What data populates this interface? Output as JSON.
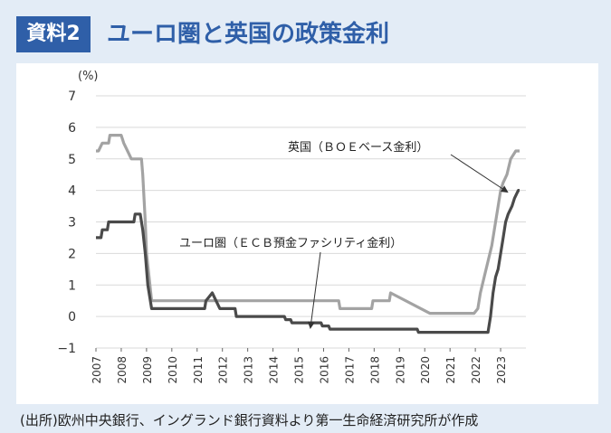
{
  "header": {
    "badge": "資料2",
    "title": "ユーロ圏と英国の政策金利"
  },
  "source": "(出所)欧州中央銀行、イングランド銀行資料より第一生命経済研究所が作成",
  "chart_data": {
    "type": "line",
    "title": "ユーロ圏と英国の政策金利",
    "xlabel": "",
    "ylabel": "(%)",
    "ylim": [
      -1,
      7
    ],
    "xlim": [
      2007.0,
      2024.0
    ],
    "yticks": [
      "−1",
      "0",
      "1",
      "2",
      "3",
      "4",
      "5",
      "6",
      "7"
    ],
    "xticks": [
      "2007",
      "2008",
      "2009",
      "2010",
      "2011",
      "2012",
      "2013",
      "2014",
      "2015",
      "2016",
      "2017",
      "2018",
      "2019",
      "2020",
      "2021",
      "2022",
      "2023"
    ],
    "grid": true,
    "series": [
      {
        "name": "英国（ＢＯＥベース金利）",
        "color": "#a3a3a3",
        "x": [
          2007.0,
          2007.1,
          2007.25,
          2007.5,
          2007.55,
          2008.0,
          2008.1,
          2008.25,
          2008.4,
          2008.8,
          2008.85,
          2008.95,
          2009.0,
          2009.2,
          2016.6,
          2016.65,
          2017.9,
          2017.95,
          2018.6,
          2018.65,
          2020.2,
          2020.25,
          2021.95,
          2022.1,
          2022.2,
          2022.35,
          2022.5,
          2022.65,
          2022.8,
          2022.9,
          2023.0,
          2023.1,
          2023.25,
          2023.4,
          2023.6,
          2023.75
        ],
        "values": [
          5.25,
          5.25,
          5.5,
          5.5,
          5.75,
          5.75,
          5.5,
          5.25,
          5.0,
          5.0,
          4.5,
          3.0,
          2.0,
          0.5,
          0.5,
          0.25,
          0.25,
          0.5,
          0.5,
          0.75,
          0.1,
          0.1,
          0.1,
          0.25,
          0.75,
          1.25,
          1.75,
          2.25,
          3.0,
          3.5,
          4.0,
          4.25,
          4.5,
          5.0,
          5.25,
          5.25
        ]
      },
      {
        "name": "ユーロ圏（ＥＣＢ預金ファシリティ金利）",
        "color": "#4a4a4a",
        "x": [
          2007.0,
          2007.2,
          2007.25,
          2007.45,
          2007.5,
          2008.5,
          2008.55,
          2008.75,
          2008.85,
          2008.95,
          2009.05,
          2009.2,
          2011.3,
          2011.35,
          2011.6,
          2011.9,
          2012.5,
          2012.55,
          2014.45,
          2014.5,
          2014.7,
          2014.75,
          2015.9,
          2015.95,
          2016.2,
          2016.25,
          2019.7,
          2019.75,
          2022.5,
          2022.6,
          2022.7,
          2022.8,
          2022.9,
          2023.0,
          2023.1,
          2023.2,
          2023.3,
          2023.45,
          2023.55,
          2023.7,
          2023.75
        ],
        "values": [
          2.5,
          2.5,
          2.75,
          2.75,
          3.0,
          3.0,
          3.25,
          3.25,
          2.75,
          2.0,
          1.0,
          0.25,
          0.25,
          0.5,
          0.75,
          0.25,
          0.25,
          0.0,
          0.0,
          -0.1,
          -0.1,
          -0.2,
          -0.2,
          -0.3,
          -0.3,
          -0.4,
          -0.4,
          -0.5,
          -0.5,
          0.0,
          0.75,
          1.25,
          1.5,
          2.0,
          2.5,
          3.0,
          3.25,
          3.5,
          3.75,
          4.0,
          4.0
        ]
      }
    ],
    "annotations": [
      {
        "series": 0,
        "text": "英国（ＢＯＥベース金利）"
      },
      {
        "series": 1,
        "text": "ユーロ圏（ＥＣＢ預金ファシリティ金利）"
      }
    ]
  }
}
